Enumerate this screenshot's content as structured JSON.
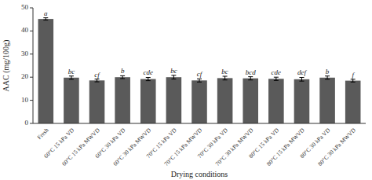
{
  "chart_data": {
    "type": "bar",
    "categories": [
      "Fresh",
      "60°C 15 kPa VD",
      "60°C 15 kPa MWVD",
      "60°C 30 kPa VD",
      "60°C 30 kPa MWVD",
      "70°C 15 kPa VD",
      "70°C 15 kPa MWVD",
      "70°C 30 kPa VD",
      "70°C 30 kPa MWVD",
      "80°C 15 kPa VD",
      "80°C 15 kPa MWVD",
      "80°C 30 kPa VD",
      "80°C 30 kPa MWVD"
    ],
    "values": [
      45.2,
      19.8,
      18.6,
      20.0,
      19.2,
      20.0,
      18.6,
      19.6,
      19.5,
      19.3,
      19.1,
      19.8,
      18.5
    ],
    "errors": [
      0.5,
      0.7,
      0.6,
      0.6,
      0.7,
      0.8,
      0.7,
      0.8,
      0.7,
      0.7,
      0.8,
      0.7,
      0.6
    ],
    "letters": [
      "a",
      "bc",
      "cf",
      "b",
      "cde",
      "bc",
      "cf",
      "bc",
      "bcd",
      "cde",
      "def",
      "b",
      "f"
    ],
    "color": "#5a5a5a",
    "ylabel": "AAC (mg/100g)",
    "xlabel": "Drying conditions",
    "ylim": [
      0,
      50
    ],
    "yticks": [
      0,
      10,
      20,
      30,
      40,
      50
    ]
  }
}
